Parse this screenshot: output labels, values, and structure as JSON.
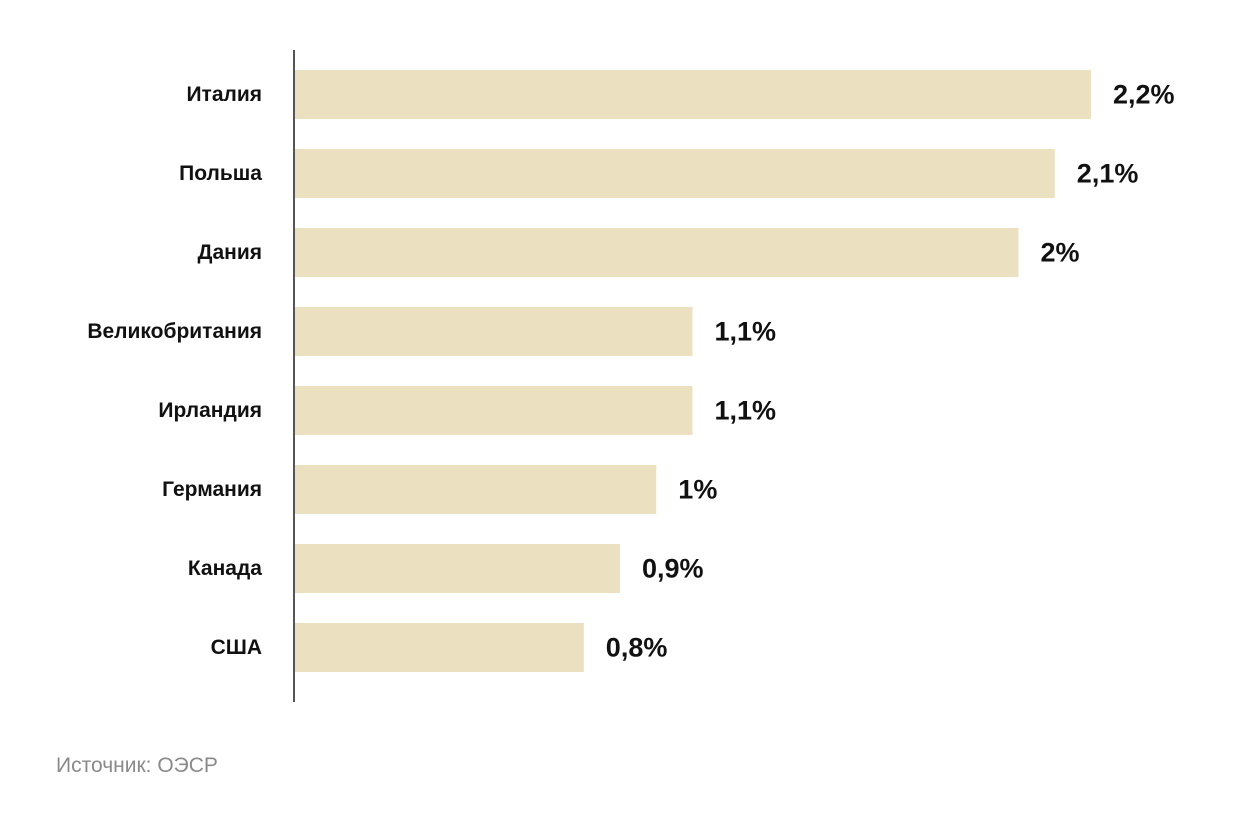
{
  "chart_data": {
    "type": "bar",
    "orientation": "horizontal",
    "categories": [
      "Италия",
      "Польша",
      "Дания",
      "Великобритания",
      "Ирландия",
      "Германия",
      "Канада",
      "США"
    ],
    "values": [
      2.2,
      2.1,
      2.0,
      1.1,
      1.1,
      1.0,
      0.9,
      0.8
    ],
    "value_labels": [
      "2,2%",
      "2,1%",
      "2%",
      "1,1%",
      "1,1%",
      "1%",
      "0,9%",
      "0,8%"
    ],
    "xlim": [
      0,
      2.2
    ],
    "grid": false,
    "legend": "none",
    "bar_color": "#ebe0c0",
    "axis_color": "#555555"
  },
  "source": "Источник: ОЭСР"
}
